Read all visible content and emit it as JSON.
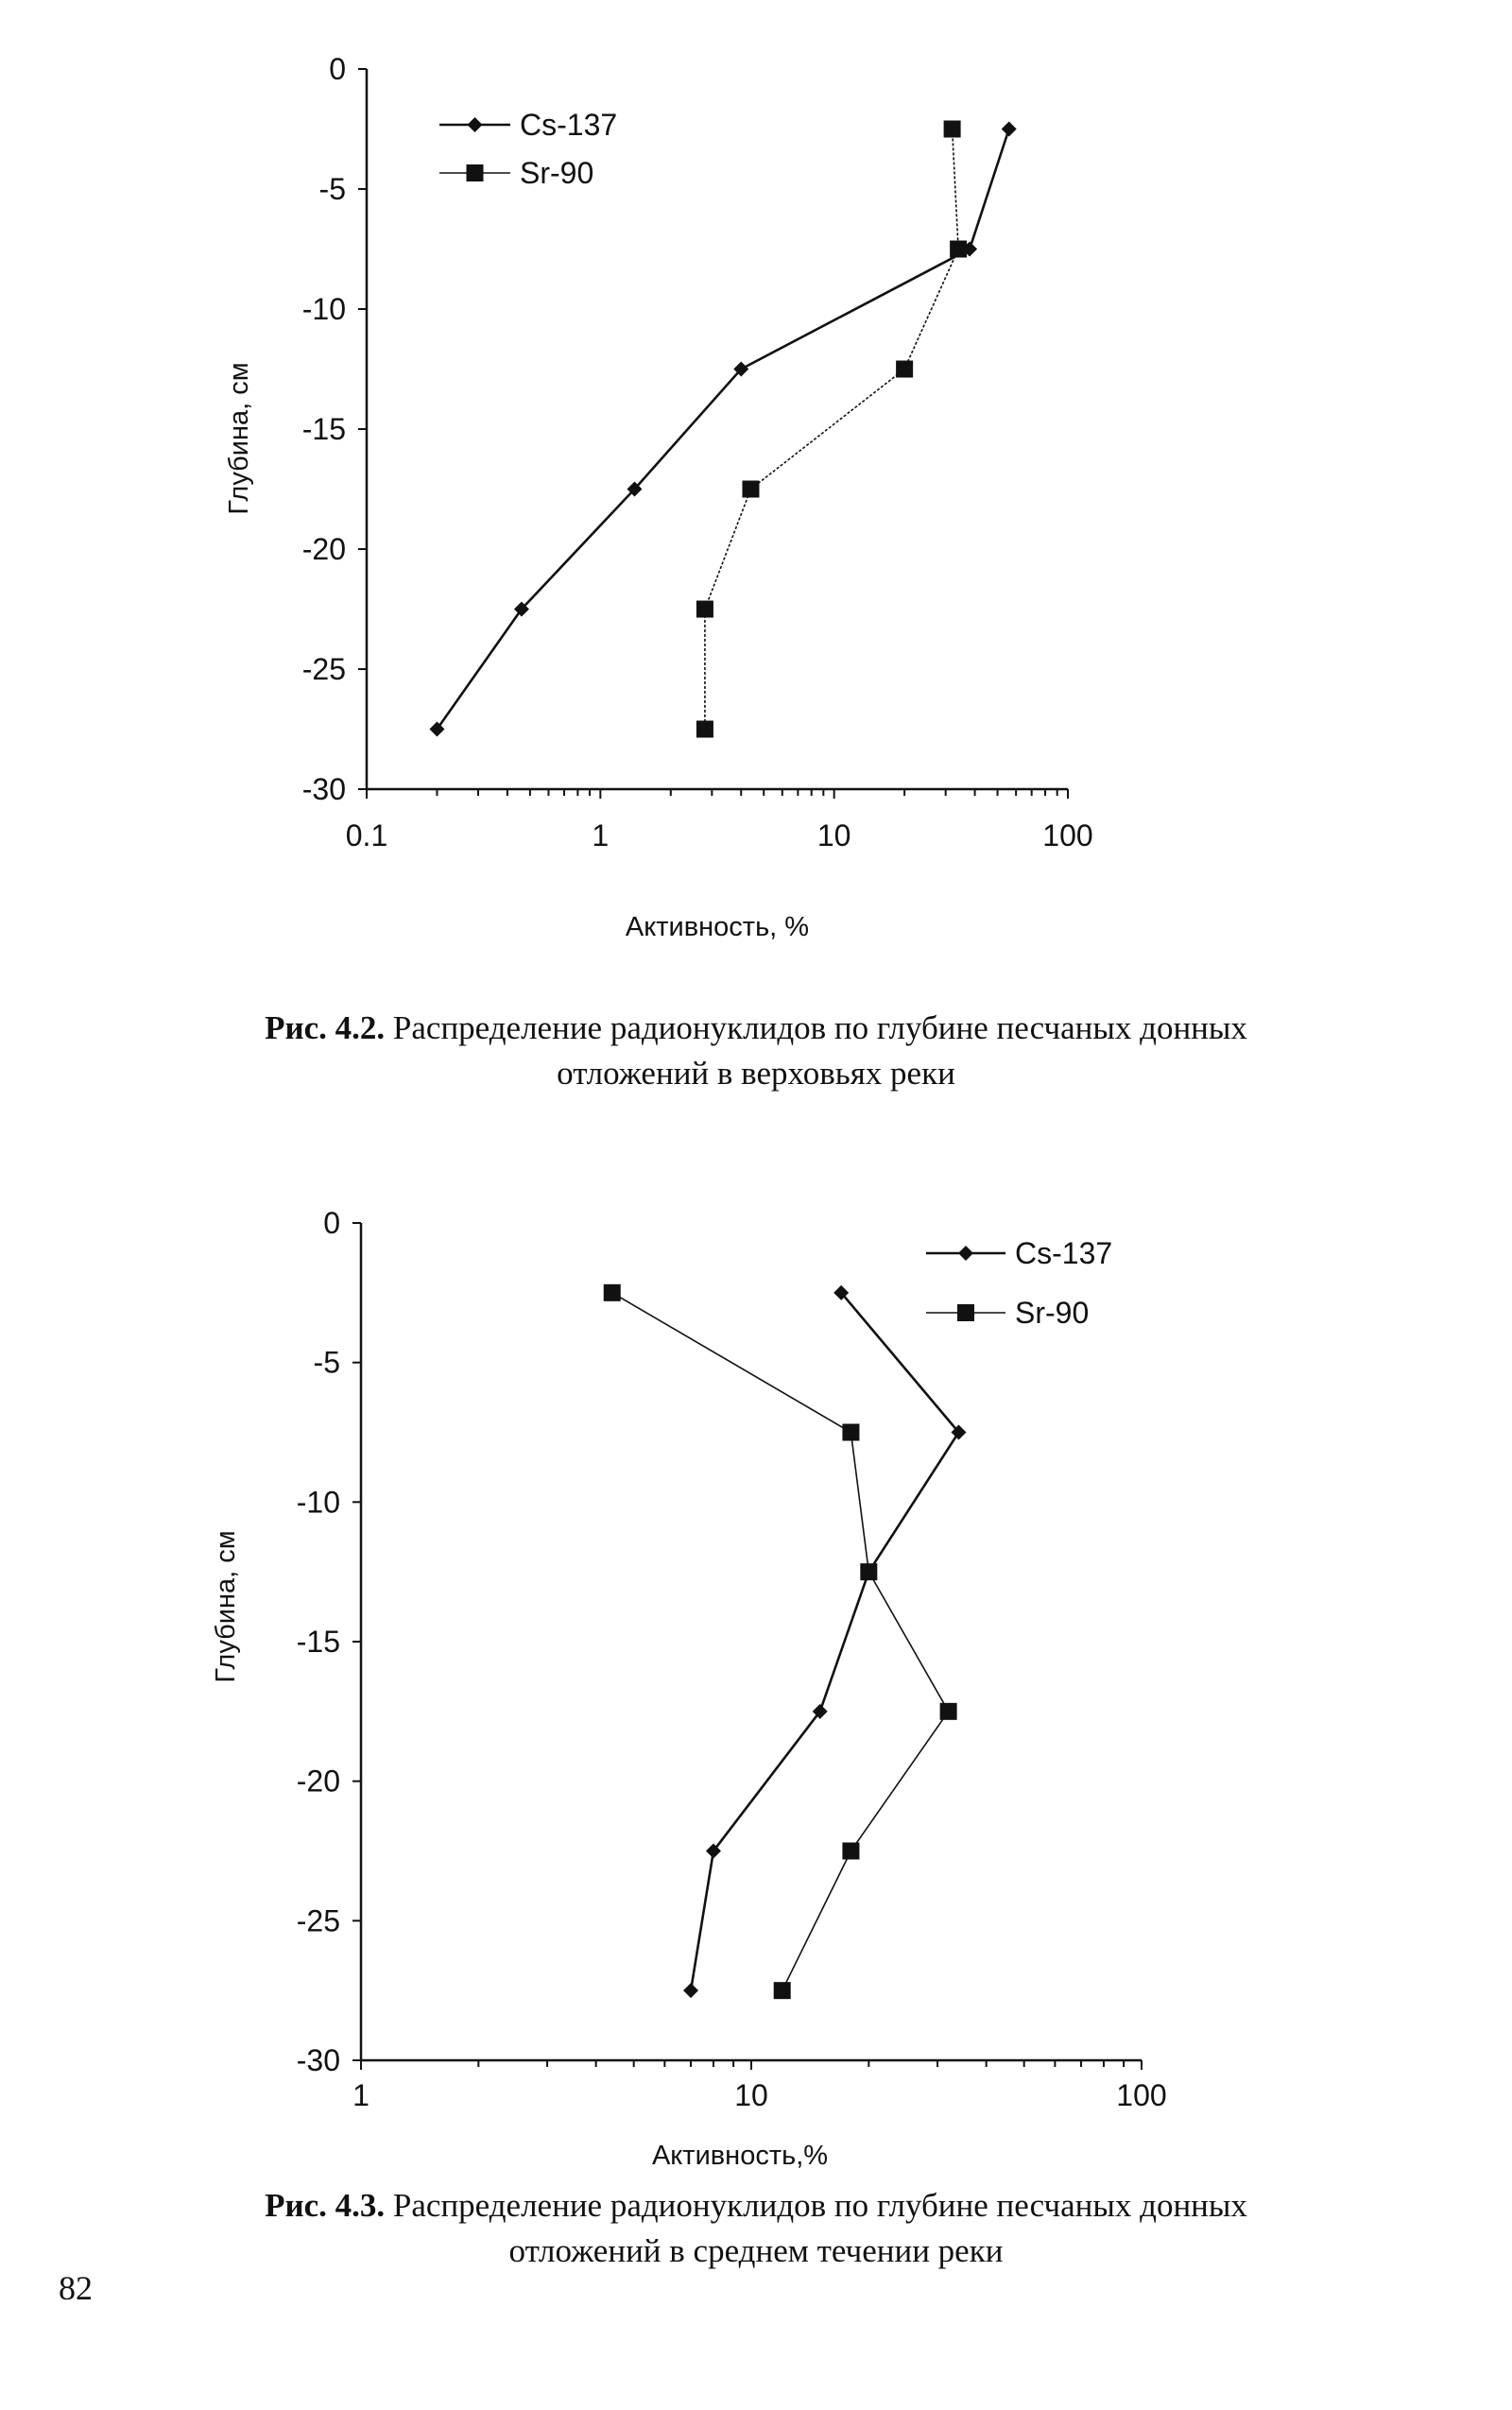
{
  "chart_data": [
    {
      "type": "line",
      "xscale": "log",
      "xlabel": "Активность, %",
      "ylabel": "Глубина, см",
      "xlim": [
        0.1,
        100
      ],
      "ylim": [
        -30,
        0
      ],
      "xticks": [
        "0.1",
        "1",
        "10",
        "100"
      ],
      "yticks": [
        "0",
        "-5",
        "-10",
        "-15",
        "-20",
        "-25",
        "-30"
      ],
      "grid": false,
      "legend_position": "top-left",
      "series": [
        {
          "name": "Cs-137",
          "marker": "diamond",
          "x": [
            56,
            38,
            4.0,
            1.4,
            0.46,
            0.2
          ],
          "y": [
            -2.5,
            -7.5,
            -12.5,
            -17.5,
            -22.5,
            -27.5
          ]
        },
        {
          "name": "Sr-90",
          "marker": "square",
          "x": [
            32,
            34,
            20,
            4.4,
            2.8,
            2.8
          ],
          "y": [
            -2.5,
            -7.5,
            -12.5,
            -17.5,
            -22.5,
            -27.5
          ]
        }
      ]
    },
    {
      "type": "line",
      "xscale": "log",
      "xlabel": "Активность,%",
      "ylabel": "Глубина, см",
      "xlim": [
        1,
        100
      ],
      "ylim": [
        -30,
        0
      ],
      "xticks": [
        "1",
        "10",
        "100"
      ],
      "yticks": [
        "0",
        "-5",
        "-10",
        "-15",
        "-20",
        "-25",
        "-30"
      ],
      "grid": false,
      "legend_position": "top-right",
      "series": [
        {
          "name": "Cs-137",
          "marker": "diamond",
          "x": [
            17,
            34,
            20,
            15,
            8,
            7
          ],
          "y": [
            -2.5,
            -7.5,
            -12.5,
            -17.5,
            -22.5,
            -27.5
          ]
        },
        {
          "name": "Sr-90",
          "marker": "square",
          "x": [
            4.4,
            18,
            20,
            32,
            18,
            12
          ],
          "y": [
            -2.5,
            -7.5,
            -12.5,
            -17.5,
            -22.5,
            -27.5
          ]
        }
      ]
    }
  ],
  "captions": [
    {
      "label": "Рис. 4.2.",
      "line1": "Распределение радионуклидов по глубине песчаных донных",
      "line2": "отложений в верховьях реки"
    },
    {
      "label": "Рис. 4.3.",
      "line1": "Распределение радионуклидов по глубине песчаных донных",
      "line2": "отложений в среднем течении реки"
    }
  ],
  "page_number": "82"
}
